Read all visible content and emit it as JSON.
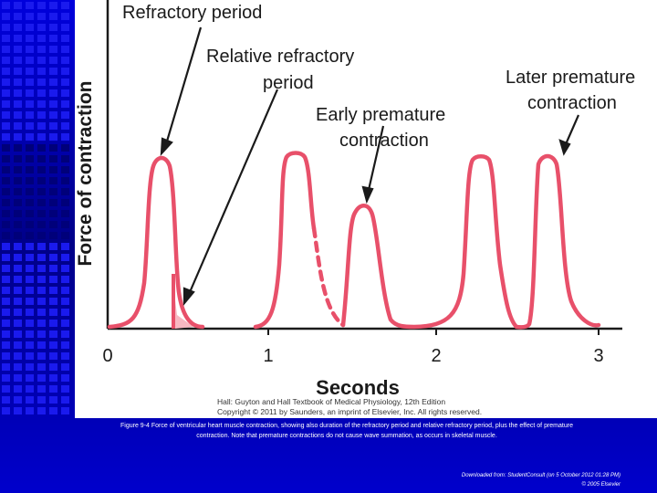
{
  "figure": {
    "labels": {
      "refractory_period": "Refractory period",
      "relative_refractory_line1": "Relative refractory",
      "relative_refractory_line2": "period",
      "early_premature_line1": "Early premature",
      "early_premature_line2": "contraction",
      "later_premature_line1": "Later premature",
      "later_premature_line2": "contraction"
    },
    "y_axis_label": "Force of contraction",
    "x_axis_label": "Seconds",
    "x_ticks": [
      "0",
      "1",
      "2",
      "3"
    ],
    "copyright_line1": "Hall: Guyton and Hall Textbook of Medical Physiology, 12th Edition",
    "copyright_line2": "Copyright © 2011 by Saunders, an imprint of Elsevier, Inc. All rights reserved."
  },
  "caption": {
    "line1": "Figure 9-4 Force of ventricular heart muscle contraction, showing also duration of the refractory period and relative refractory period, plus the effect of premature",
    "line2": "contraction. Note that premature contractions do not cause wave summation, as occurs in skeletal muscle."
  },
  "credit": {
    "line1": "Downloaded from: StudentConsult (on 5 October 2012 01:28 PM)",
    "line2": "© 2005 Elsevier"
  },
  "colors": {
    "background": "#0000cc",
    "curve": "#e8506a",
    "refractory_fill": "#f7b8c2",
    "text": "#1a1a1a"
  }
}
